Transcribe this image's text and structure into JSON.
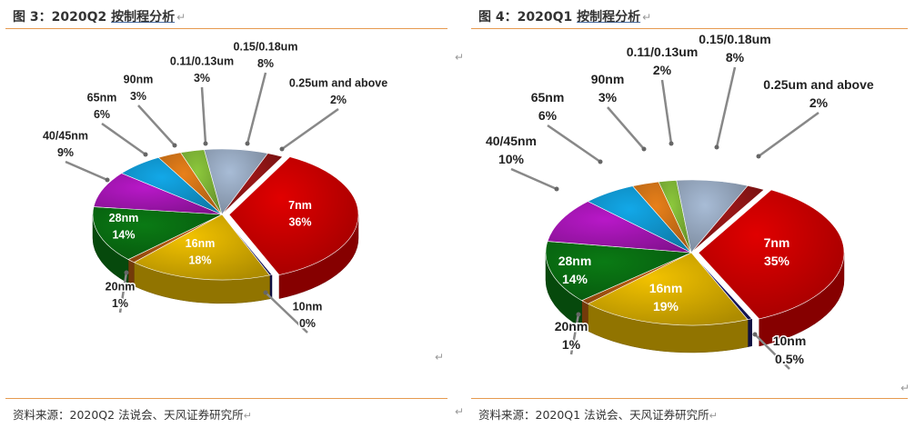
{
  "panels": [
    {
      "title_prefix": "图 3：2020Q2 ",
      "title_subject": "按制程分析",
      "source": "资料来源：2020Q2 法说会、天风证券研究所"
    },
    {
      "title_prefix": "图 4：2020Q1 ",
      "title_subject": "按制程分析",
      "source": "资料来源：2020Q1 法说会、天风证券研究所"
    }
  ],
  "paragraph_mark": "↵",
  "colors": {
    "7nm": "#e00000",
    "10nm": "#1a1a6e",
    "16nm": "#f2c200",
    "20nm": "#c06010",
    "28nm": "#0a7a14",
    "40/45nm": "#b818c8",
    "65nm": "#12a8e8",
    "90nm": "#e8801a",
    "0.11/0.13um": "#8cc83c",
    "0.15/0.18um": "#a8bcd6",
    "0.25um and above": "#a01818"
  },
  "chart_data": [
    {
      "type": "pie",
      "title": "2020Q2 按制程分析",
      "slices": [
        {
          "label": "7nm",
          "pct_label": "36%",
          "value": 36
        },
        {
          "label": "10nm",
          "pct_label": "0%",
          "value": 0.3
        },
        {
          "label": "16nm",
          "pct_label": "18%",
          "value": 18
        },
        {
          "label": "20nm",
          "pct_label": "1%",
          "value": 1
        },
        {
          "label": "28nm",
          "pct_label": "14%",
          "value": 14
        },
        {
          "label": "40/45nm",
          "pct_label": "9%",
          "value": 9
        },
        {
          "label": "65nm",
          "pct_label": "6%",
          "value": 6
        },
        {
          "label": "90nm",
          "pct_label": "3%",
          "value": 3
        },
        {
          "label": "0.11/0.13um",
          "pct_label": "3%",
          "value": 3
        },
        {
          "label": "0.15/0.18um",
          "pct_label": "8%",
          "value": 8
        },
        {
          "label": "0.25um and above",
          "pct_label": "2%",
          "value": 2
        }
      ]
    },
    {
      "type": "pie",
      "title": "2020Q1 按制程分析",
      "slices": [
        {
          "label": "7nm",
          "pct_label": "35%",
          "value": 35
        },
        {
          "label": "10nm",
          "pct_label": "0.5%",
          "value": 0.5
        },
        {
          "label": "16nm",
          "pct_label": "19%",
          "value": 19
        },
        {
          "label": "20nm",
          "pct_label": "1%",
          "value": 1
        },
        {
          "label": "28nm",
          "pct_label": "14%",
          "value": 14
        },
        {
          "label": "40/45nm",
          "pct_label": "10%",
          "value": 10
        },
        {
          "label": "65nm",
          "pct_label": "6%",
          "value": 6
        },
        {
          "label": "90nm",
          "pct_label": "3%",
          "value": 3
        },
        {
          "label": "0.11/0.13um",
          "pct_label": "2%",
          "value": 2
        },
        {
          "label": "0.15/0.18um",
          "pct_label": "8%",
          "value": 8
        },
        {
          "label": "0.25um and above",
          "pct_label": "2%",
          "value": 2
        }
      ]
    }
  ]
}
